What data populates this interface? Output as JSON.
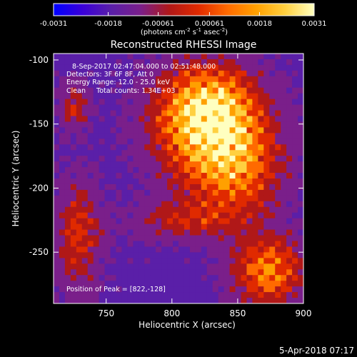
{
  "chart_data": {
    "type": "heatmap",
    "title": "Reconstructed RHESSI Image",
    "colorbar": {
      "ticks": [
        "-0.0031",
        "-0.0018",
        "-0.00061",
        "0.00061",
        "0.0018",
        "0.0031"
      ],
      "range": [
        -0.0031,
        0.0031
      ],
      "unit_parts": [
        "(photons cm",
        "-2",
        " s",
        "-1",
        " asec",
        "-2",
        ")"
      ],
      "colors": [
        "#0000ff",
        "#3a00d8",
        "#5a1fa8",
        "#7a1f8a",
        "#b01818",
        "#e02a00",
        "#ff6a00",
        "#ffa000",
        "#ffd040",
        "#ffffc0"
      ]
    },
    "xlabel": "Heliocentric X (arcsec)",
    "ylabel": "Heliocentric Y (arcsec)",
    "xlim": [
      710,
      900
    ],
    "ylim": [
      -290,
      -95
    ],
    "xticks": [
      750,
      800,
      850,
      900
    ],
    "yticks": [
      -100,
      -150,
      -200,
      -250
    ],
    "annotations": [
      "8-Sep-2017 02:47:04.000 to 02:51:48.000",
      "Detectors: 3F 6F 8F, Att 0",
      "Energy Range: 12.0 - 25.0 keV",
      "Clean     Total counts: 1.34E+03"
    ],
    "peak_label": "Position of Peak = [822,-128]",
    "peak": [
      822,
      -128
    ]
  },
  "footer": {
    "timestamp": "5-Apr-2018 07:17"
  }
}
